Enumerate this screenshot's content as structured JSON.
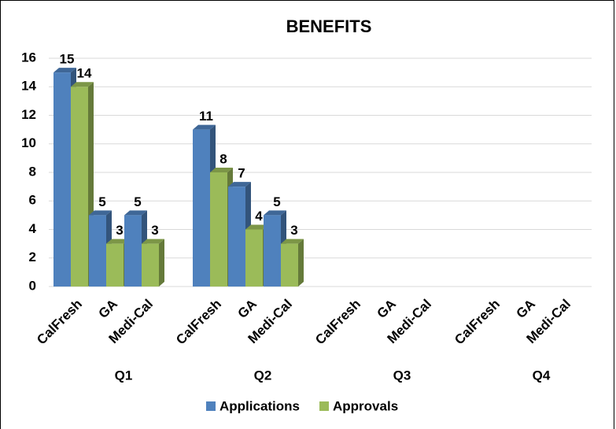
{
  "chart_data": {
    "type": "bar",
    "title": "BENEFITS",
    "categories": [
      "CalFresh",
      "GA",
      "Medi-Cal",
      "CalFresh",
      "GA",
      "Medi-Cal",
      "CalFresh",
      "GA",
      "Medi-Cal",
      "CalFresh",
      "GA",
      "Medi-Cal"
    ],
    "groups": [
      "Q1",
      "Q2",
      "Q3",
      "Q4"
    ],
    "series": [
      {
        "name": "Applications",
        "color": "#4f81bd",
        "values": [
          15,
          5,
          5,
          11,
          7,
          5,
          null,
          null,
          null,
          null,
          null,
          null
        ]
      },
      {
        "name": "Approvals",
        "color": "#9bbb59",
        "values": [
          14,
          3,
          3,
          8,
          4,
          3,
          null,
          null,
          null,
          null,
          null,
          null
        ]
      }
    ],
    "ylim": [
      0,
      16
    ],
    "yticks": [
      0,
      2,
      4,
      6,
      8,
      10,
      12,
      14,
      16
    ],
    "grid": true,
    "legend": "bottom"
  }
}
